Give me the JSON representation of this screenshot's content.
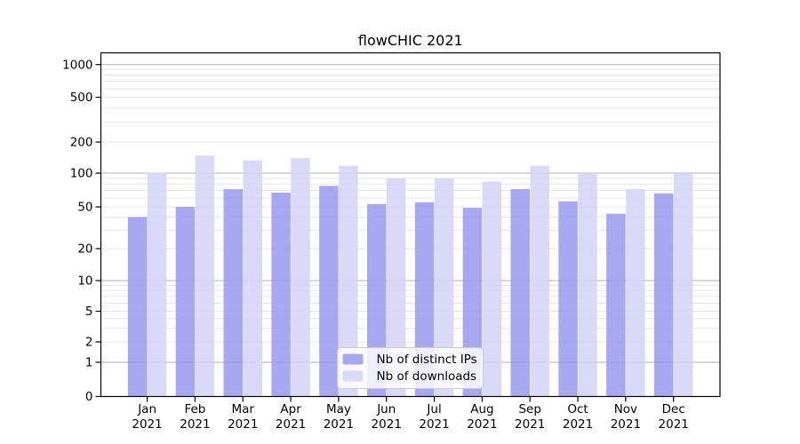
{
  "window": {
    "title": "flowCHIC 2021"
  },
  "chart_data": {
    "type": "bar",
    "title": "flowCHIC 2021",
    "categories": [
      "Jan 2021",
      "Feb 2021",
      "Mar 2021",
      "Apr 2021",
      "May 2021",
      "Jun 2021",
      "Jul 2021",
      "Aug 2021",
      "Sep 2021",
      "Oct 2021",
      "Nov 2021",
      "Dec 2021"
    ],
    "series": [
      {
        "name": "Nb of distinct IPs",
        "color": "#9999f0",
        "values": [
          40,
          50,
          72,
          67,
          77,
          53,
          55,
          49,
          72,
          56,
          43,
          66
        ]
      },
      {
        "name": "Nb of downloads",
        "color": "#d3d3f7",
        "values": [
          101,
          148,
          133,
          140,
          118,
          90,
          90,
          84,
          118,
          100,
          72,
          102
        ]
      }
    ],
    "xlabel": "",
    "ylabel": "",
    "yscale": "symlog",
    "yticks": [
      0,
      1,
      2,
      5,
      10,
      20,
      50,
      100,
      200,
      500,
      1000
    ],
    "ylim": [
      0,
      1300
    ],
    "grid": "both",
    "legend_position": "lower center",
    "colors": {
      "major_grid": "#b0b0b0",
      "minor_grid": "#e7e7e7",
      "axis": "#000000",
      "legend_border": "#cccccc",
      "legend_bg": "rgba(255,255,255,0.8)"
    }
  }
}
